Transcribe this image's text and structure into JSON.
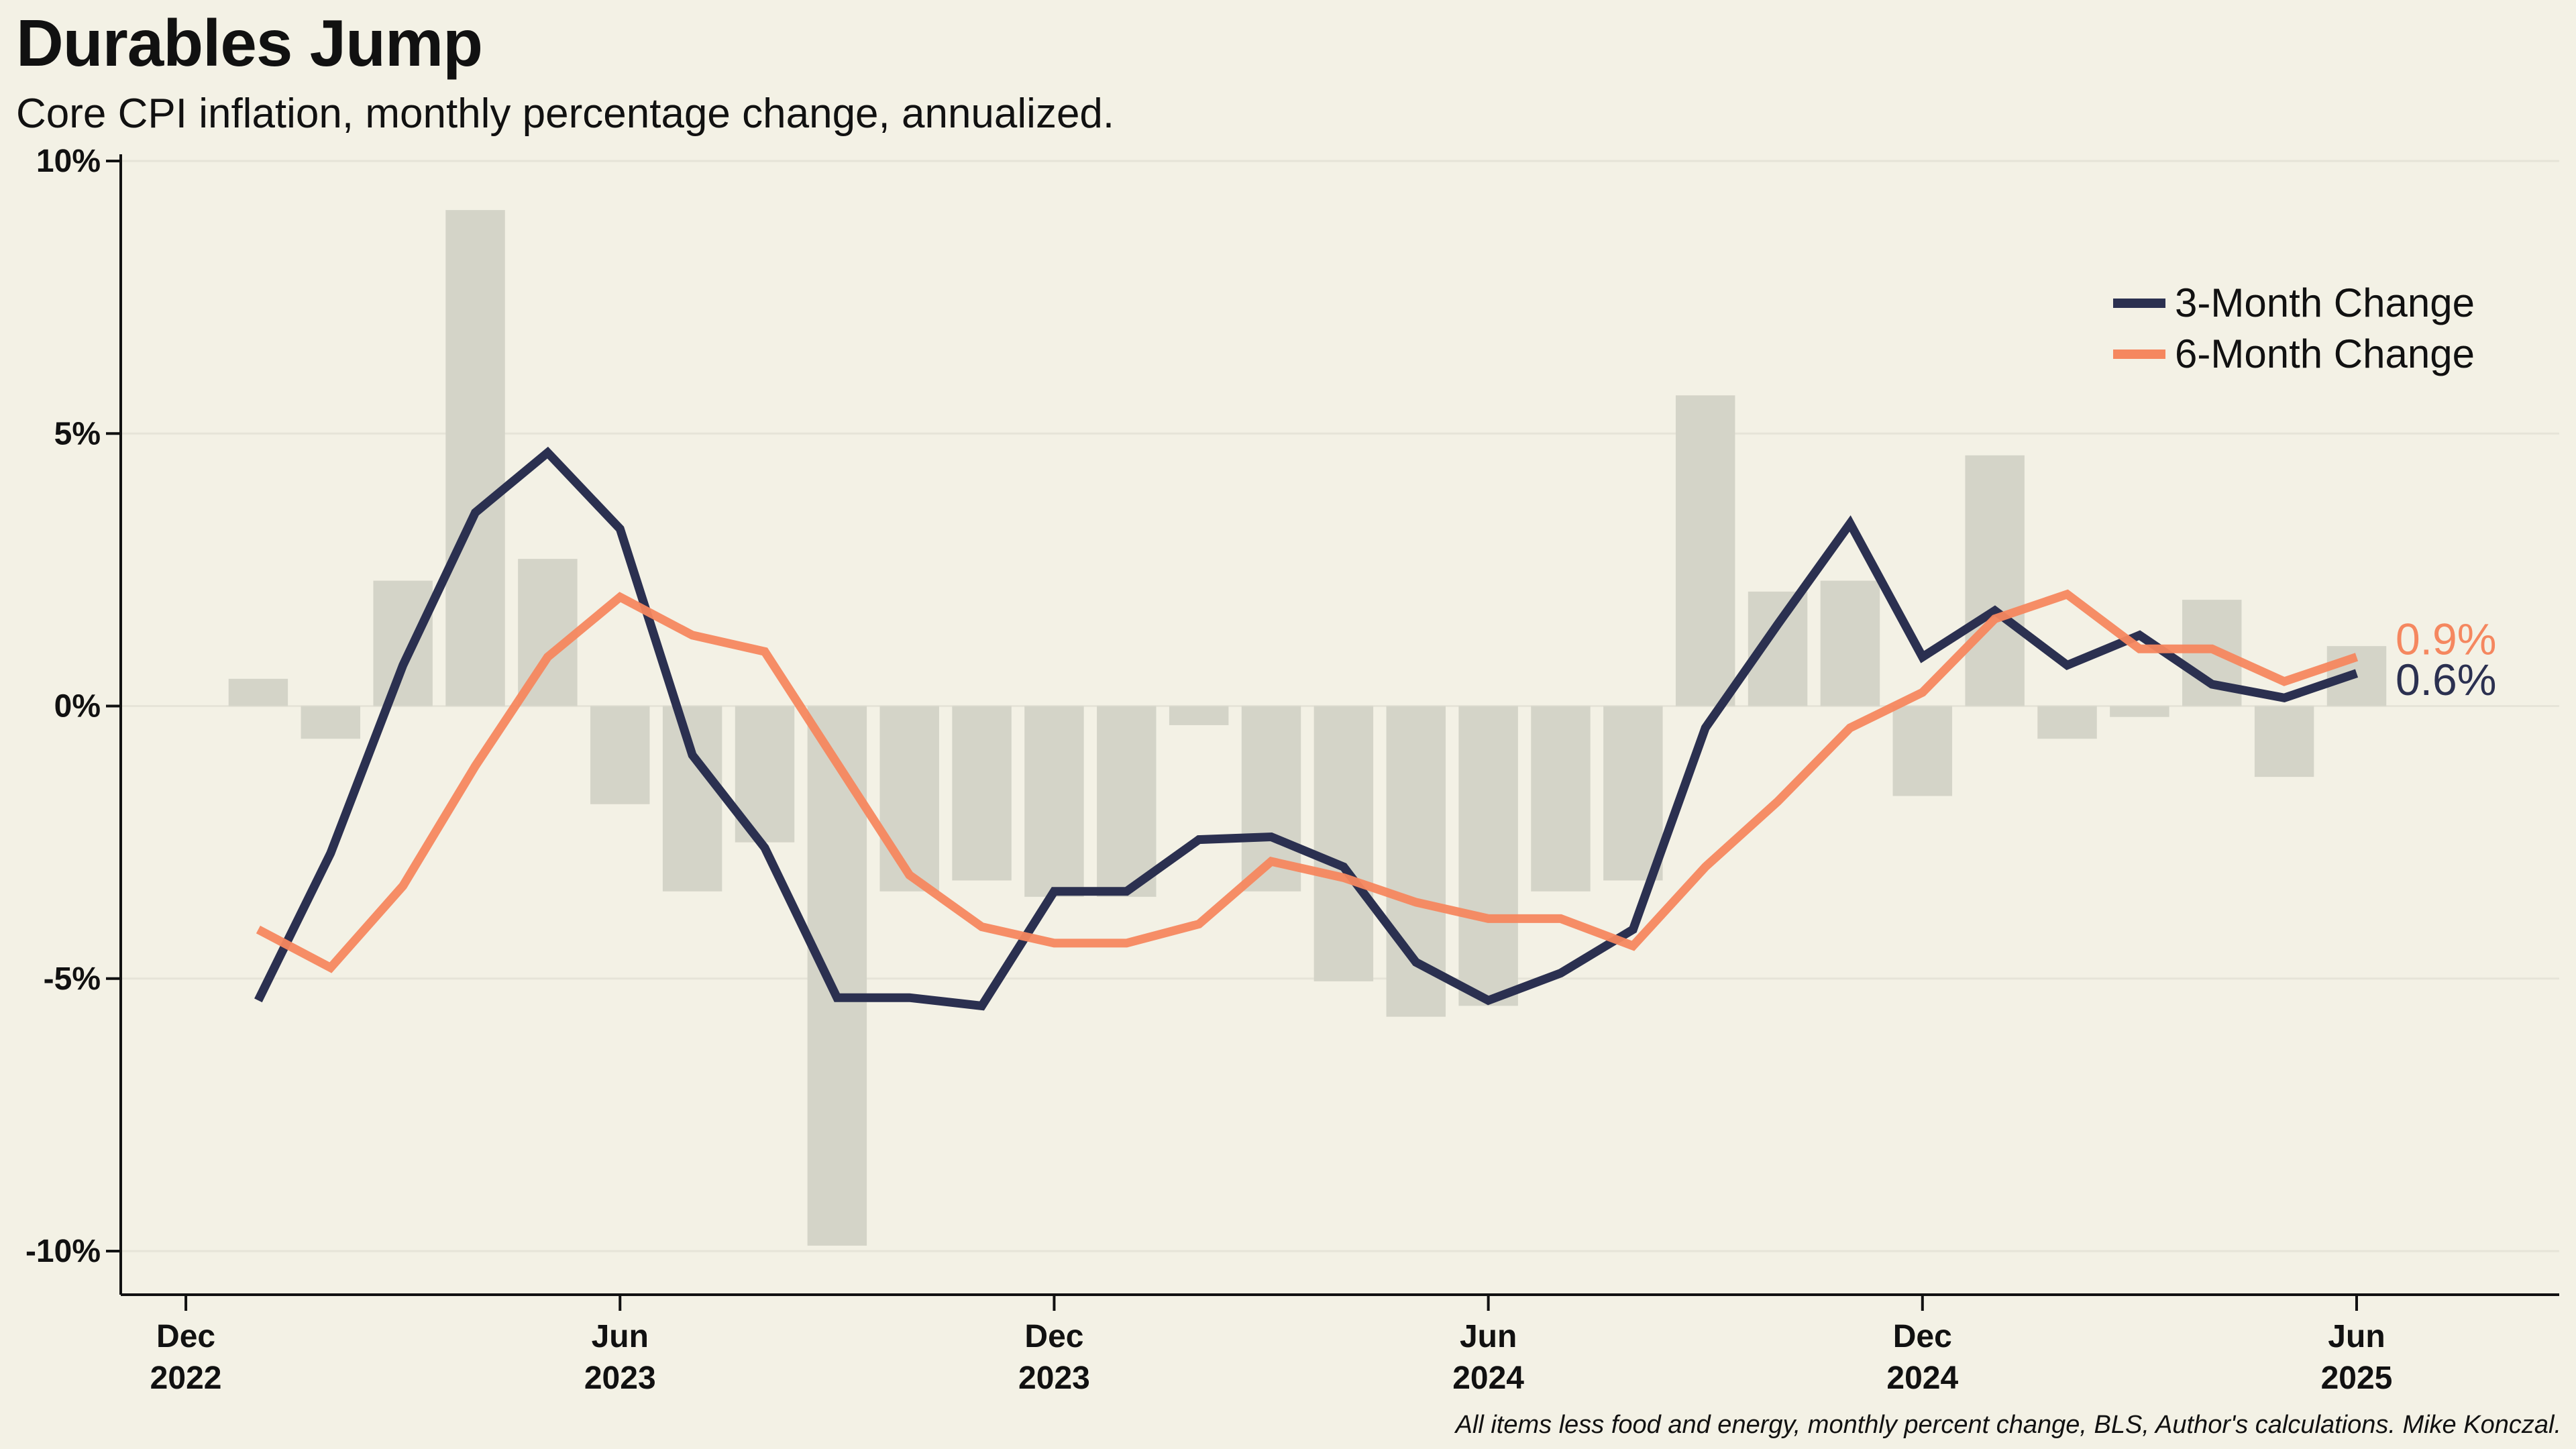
{
  "title": "Durables Jump",
  "subtitle": "Core CPI inflation, monthly percentage change, annualized.",
  "caption": "All items less food and energy, monthly percent change, BLS, Author's calculations. Mike Konczal.",
  "colors": {
    "background": "#f3f1e5",
    "bars": "#d4d4c8",
    "three_month": "#2b3050",
    "six_month": "#f5875f",
    "gridline": "#e6e4d8"
  },
  "chart_data": {
    "type": "bar",
    "y_ticks": [
      {
        "value": 10,
        "label": "10%"
      },
      {
        "value": 5,
        "label": "5%"
      },
      {
        "value": 0,
        "label": "0%"
      },
      {
        "value": -5,
        "label": "-5%"
      },
      {
        "value": -10,
        "label": "-10%"
      }
    ],
    "ylim": [
      -10.8,
      10
    ],
    "x_ticks": [
      {
        "index": 0,
        "month": "Dec",
        "year": "2022"
      },
      {
        "index": 6,
        "month": "Jun",
        "year": "2023"
      },
      {
        "index": 12,
        "month": "Dec",
        "year": "2023"
      },
      {
        "index": 18,
        "month": "Jun",
        "year": "2024"
      },
      {
        "index": 24,
        "month": "Dec",
        "year": "2024"
      },
      {
        "index": 30,
        "month": "Jun",
        "year": "2025"
      }
    ],
    "xlim": [
      -0.9,
      32.8
    ],
    "categories": [
      "2023-01",
      "2023-02",
      "2023-03",
      "2023-04",
      "2023-05",
      "2023-06",
      "2023-07",
      "2023-08",
      "2023-09",
      "2023-10",
      "2023-11",
      "2023-12",
      "2024-01",
      "2024-02",
      "2024-03",
      "2024-04",
      "2024-05",
      "2024-06",
      "2024-07",
      "2024-08",
      "2024-09",
      "2024-10",
      "2024-11",
      "2024-12",
      "2025-01",
      "2025-02",
      "2025-03",
      "2025-04",
      "2025-05",
      "2025-06"
    ],
    "bar_values": [
      0.5,
      -0.6,
      2.3,
      9.1,
      2.7,
      -1.8,
      -3.4,
      -2.5,
      -9.9,
      -3.4,
      -3.2,
      -3.5,
      -3.5,
      -0.35,
      -3.4,
      -5.05,
      -5.7,
      -5.5,
      -3.4,
      -3.2,
      5.7,
      2.1,
      2.3,
      -1.65,
      4.6,
      -0.6,
      -0.2,
      1.95,
      -1.3,
      1.1
    ],
    "series": [
      {
        "name": "3-Month Change",
        "x": [
          1,
          2,
          3,
          4,
          5,
          6,
          7,
          8,
          9,
          10,
          11,
          12,
          13,
          14,
          15,
          16,
          17,
          18,
          19,
          20,
          21,
          22,
          23,
          24,
          25,
          26,
          27,
          28,
          29,
          30
        ],
        "values": [
          -5.4,
          -2.7,
          0.75,
          3.55,
          4.65,
          3.25,
          -0.9,
          -2.6,
          -5.35,
          -5.35,
          -5.5,
          -3.4,
          -3.4,
          -2.45,
          -2.4,
          -2.95,
          -4.7,
          -5.4,
          -4.9,
          -4.1,
          -0.4,
          1.5,
          3.35,
          0.9,
          1.75,
          0.75,
          1.3,
          0.4,
          0.15,
          0.6
        ]
      },
      {
        "name": "6-Month Change",
        "x": [
          1,
          2,
          3,
          4,
          5,
          6,
          7,
          8,
          9,
          10,
          11,
          12,
          13,
          14,
          15,
          16,
          17,
          18,
          19,
          20,
          21,
          22,
          23,
          24,
          25,
          26,
          27,
          28,
          29,
          30
        ],
        "values": [
          -4.1,
          -4.8,
          -3.3,
          -1.1,
          0.9,
          2.0,
          1.3,
          1.0,
          -1.05,
          -3.1,
          -4.05,
          -4.35,
          -4.35,
          -4.0,
          -2.85,
          -3.15,
          -3.6,
          -3.9,
          -3.9,
          -4.4,
          -2.95,
          -1.75,
          -0.4,
          0.25,
          1.6,
          2.05,
          1.05,
          1.05,
          0.45,
          0.9
        ]
      }
    ],
    "end_labels": [
      {
        "series": "6-Month Change",
        "text": "0.9%"
      },
      {
        "series": "3-Month Change",
        "text": "0.6%"
      }
    ],
    "legend_position": "top-right",
    "grid": "horizontal"
  }
}
